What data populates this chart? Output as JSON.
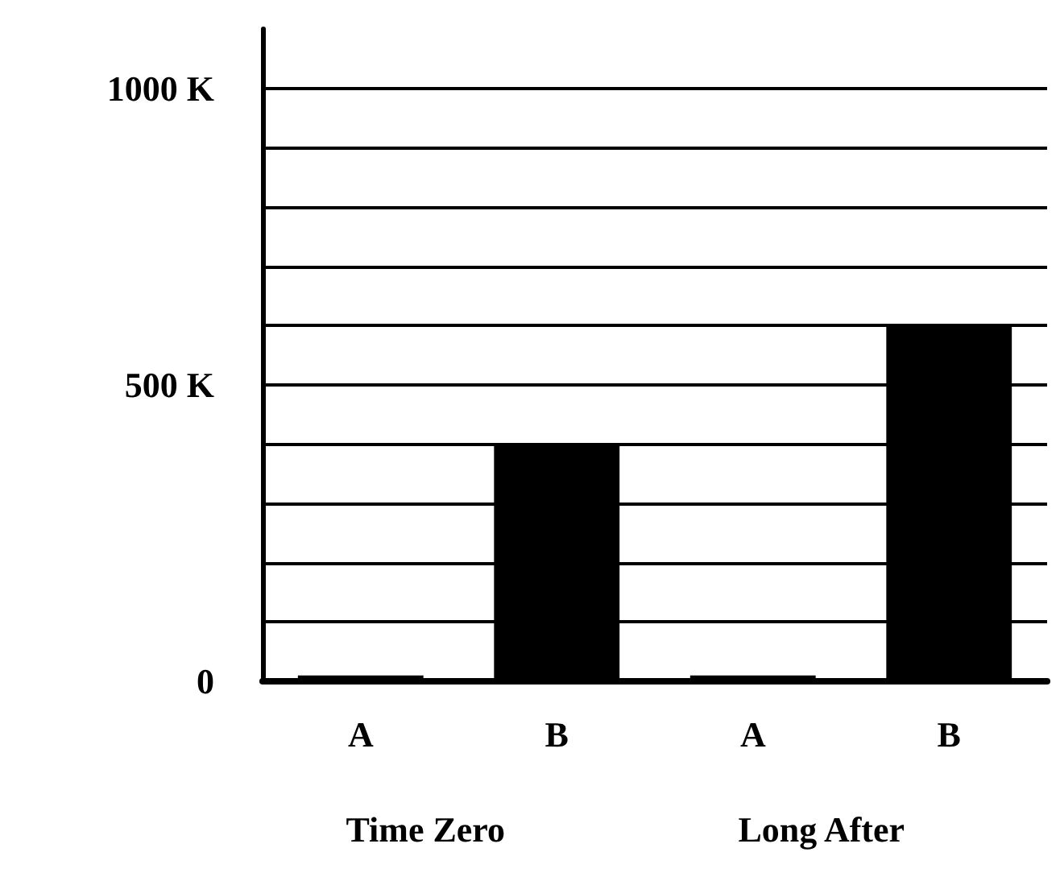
{
  "chart_data": {
    "type": "bar",
    "categories": [
      "A",
      "B",
      "A",
      "B"
    ],
    "values": [
      10000,
      400000,
      10000,
      600000
    ],
    "color": "#000000",
    "ylim": [
      0,
      1100000
    ],
    "yticks": [
      0,
      {
        "value": 100000,
        "label": null
      },
      {
        "value": 200000,
        "label": null
      },
      {
        "value": 300000,
        "label": null
      },
      {
        "value": 400000,
        "label": null
      },
      {
        "value": 500000,
        "label": "500 K"
      },
      {
        "value": 600000,
        "label": null
      },
      {
        "value": 700000,
        "label": null
      },
      {
        "value": 800000,
        "label": null
      },
      {
        "value": 900000,
        "label": null
      },
      {
        "value": 1000000,
        "label": "1000 K"
      }
    ],
    "grid": "y",
    "annotations": [
      "Time Zero",
      "Long After"
    ]
  }
}
